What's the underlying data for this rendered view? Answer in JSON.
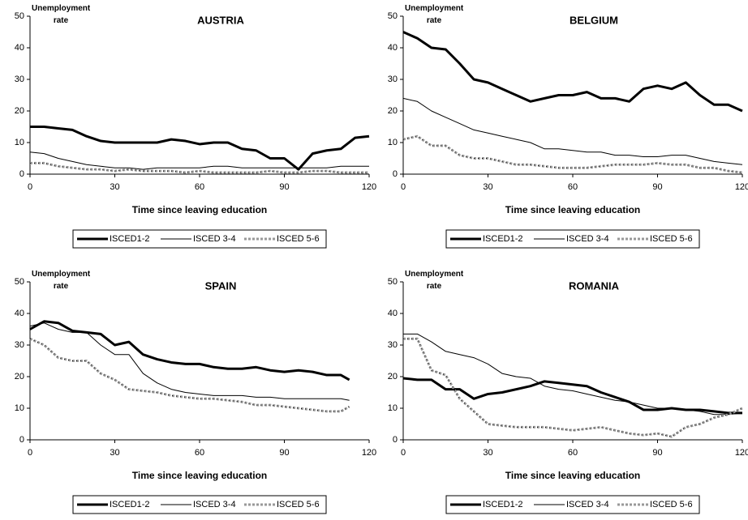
{
  "chart_data": [
    {
      "type": "line",
      "title": "AUSTRIA",
      "ylabel": "Unemployment rate",
      "xlabel": "Time since leaving education",
      "xlim": [
        0,
        120
      ],
      "xticks": [
        0,
        30,
        60,
        90,
        120
      ],
      "ylim": [
        0,
        50
      ],
      "yticks": [
        0,
        10,
        20,
        30,
        40,
        50
      ],
      "legend": "bottom",
      "x": [
        0,
        5,
        10,
        15,
        20,
        25,
        30,
        35,
        40,
        45,
        50,
        55,
        60,
        65,
        70,
        75,
        80,
        85,
        90,
        95,
        100,
        105,
        110,
        115,
        120
      ],
      "series": [
        {
          "name": "ISCED1-2",
          "color": "#000000",
          "values": [
            15,
            15,
            14.5,
            14,
            12,
            10.5,
            10,
            10,
            10,
            10,
            11,
            10.5,
            9.5,
            10,
            10,
            8,
            7.5,
            5,
            5,
            1.5,
            6.5,
            7.5,
            8,
            11.5,
            12
          ]
        },
        {
          "name": "ISCED 3-4",
          "color": "#000000",
          "values": [
            7,
            6.5,
            5,
            4,
            3,
            2.5,
            2,
            2,
            1.5,
            2,
            2,
            2,
            2,
            2.5,
            2.5,
            2,
            2,
            2,
            2,
            2,
            2,
            2,
            2.5,
            2.5,
            2.5
          ]
        },
        {
          "name": "ISCED 5-6",
          "color": "#999999",
          "values": [
            3.5,
            3.5,
            2.5,
            2,
            1.5,
            1.5,
            1,
            1.5,
            1,
            1,
            1,
            0.5,
            1,
            0.5,
            0.5,
            0.5,
            0.5,
            1,
            0.5,
            0.5,
            1,
            1,
            0.5,
            0.5,
            0.5
          ]
        }
      ]
    },
    {
      "type": "line",
      "title": "BELGIUM",
      "ylabel": "Unemployment rate",
      "xlabel": "Time since leaving education",
      "xlim": [
        0,
        120
      ],
      "xticks": [
        0,
        30,
        60,
        90,
        120
      ],
      "ylim": [
        0,
        50
      ],
      "yticks": [
        0,
        10,
        20,
        30,
        40,
        50
      ],
      "legend": "bottom",
      "x": [
        0,
        5,
        10,
        15,
        20,
        25,
        30,
        35,
        40,
        45,
        50,
        55,
        60,
        65,
        70,
        75,
        80,
        85,
        90,
        95,
        100,
        105,
        110,
        115,
        120
      ],
      "series": [
        {
          "name": "ISCED1-2",
          "color": "#000000",
          "values": [
            45,
            43,
            40,
            39.5,
            35,
            30,
            29,
            27,
            25,
            23,
            24,
            25,
            25,
            26,
            24,
            24,
            23,
            27,
            28,
            27,
            29,
            25,
            22,
            22,
            20
          ]
        },
        {
          "name": "ISCED 3-4",
          "color": "#000000",
          "values": [
            24,
            23,
            20,
            18,
            16,
            14,
            13,
            12,
            11,
            10,
            8,
            8,
            7.5,
            7,
            7,
            6,
            6,
            5.5,
            5.5,
            6,
            6,
            5,
            4,
            3.5,
            3
          ]
        },
        {
          "name": "ISCED 5-6",
          "color": "#999999",
          "values": [
            11,
            12,
            9,
            9,
            6,
            5,
            5,
            4,
            3,
            3,
            2.5,
            2,
            2,
            2,
            2.5,
            3,
            3,
            3,
            3.5,
            3,
            3,
            2,
            2,
            1,
            0.5
          ]
        }
      ]
    },
    {
      "type": "line",
      "title": "SPAIN",
      "ylabel": "Unemployment rate",
      "xlabel": "Time since leaving education",
      "xlim": [
        0,
        120
      ],
      "xticks": [
        0,
        30,
        60,
        90,
        120
      ],
      "ylim": [
        0,
        50
      ],
      "yticks": [
        0,
        10,
        20,
        30,
        40,
        50
      ],
      "legend": "bottom",
      "x": [
        0,
        5,
        10,
        15,
        20,
        25,
        30,
        35,
        40,
        45,
        50,
        55,
        60,
        65,
        70,
        75,
        80,
        85,
        90,
        95,
        100,
        105,
        110,
        113
      ],
      "series": [
        {
          "name": "ISCED1-2",
          "color": "#000000",
          "values": [
            35,
            37.5,
            37,
            34.5,
            34,
            33.5,
            30,
            31,
            27,
            25.5,
            24.5,
            24,
            24,
            23,
            22.5,
            22.5,
            23,
            22,
            21.5,
            22,
            21.5,
            20.5,
            20.5,
            19
          ]
        },
        {
          "name": "ISCED 3-4",
          "color": "#000000",
          "values": [
            36,
            37,
            35,
            34,
            34,
            30,
            27,
            27,
            21,
            18,
            16,
            15,
            14.5,
            14,
            14,
            14,
            13.5,
            13.5,
            13,
            13,
            13,
            13,
            13,
            12.5
          ]
        },
        {
          "name": "ISCED 5-6",
          "color": "#999999",
          "values": [
            32,
            30,
            26,
            25,
            25,
            21,
            19,
            16,
            15.5,
            15,
            14,
            13.5,
            13,
            13,
            12.5,
            12,
            11,
            11,
            10.5,
            10,
            9.5,
            9,
            9,
            10.5
          ]
        }
      ]
    },
    {
      "type": "line",
      "title": "ROMANIA",
      "ylabel": "Unemployment rate",
      "xlabel": "Time since leaving education",
      "xlim": [
        0,
        120
      ],
      "xticks": [
        0,
        30,
        60,
        90,
        120
      ],
      "ylim": [
        0,
        50
      ],
      "yticks": [
        0,
        10,
        20,
        30,
        40,
        50
      ],
      "legend": "bottom",
      "x": [
        0,
        5,
        10,
        15,
        20,
        25,
        30,
        35,
        40,
        45,
        50,
        55,
        60,
        65,
        70,
        75,
        80,
        85,
        90,
        95,
        100,
        105,
        110,
        115,
        120
      ],
      "series": [
        {
          "name": "ISCED1-2",
          "color": "#000000",
          "values": [
            19.5,
            19,
            19,
            16,
            16,
            13,
            14.5,
            15,
            16,
            17,
            18.5,
            18,
            17.5,
            17,
            15,
            13.5,
            12,
            9.5,
            9.5,
            10,
            9.5,
            9.5,
            9,
            8.5,
            8.5
          ]
        },
        {
          "name": "ISCED 3-4",
          "color": "#000000",
          "values": [
            33.5,
            33.5,
            31,
            28,
            27,
            26,
            24,
            21,
            20,
            19.5,
            17,
            16,
            15.5,
            14.5,
            13.5,
            12.5,
            12,
            11,
            10,
            10,
            9.5,
            9,
            8,
            8,
            8.5
          ]
        },
        {
          "name": "ISCED 5-6",
          "color": "#999999",
          "values": [
            32,
            32,
            22,
            20.5,
            13,
            9,
            5,
            4.5,
            4,
            4,
            4,
            3.5,
            3,
            3.5,
            4,
            3,
            2,
            1.5,
            2,
            1,
            4,
            5,
            7,
            8,
            10
          ]
        }
      ]
    }
  ]
}
